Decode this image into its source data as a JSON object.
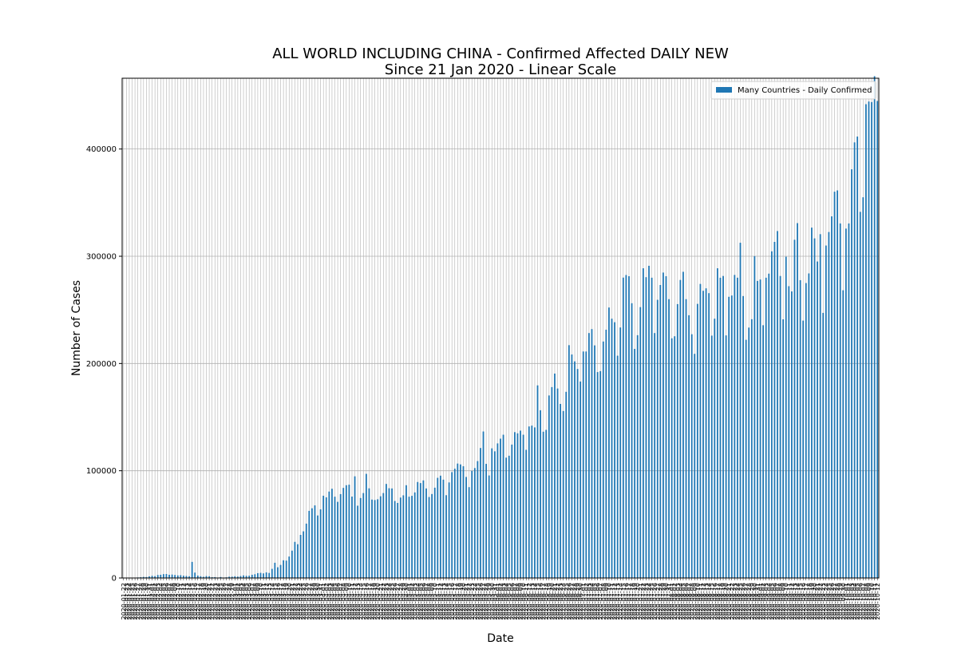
{
  "chart_data": {
    "type": "bar",
    "title": "ALL WORLD INCLUDING CHINA - Confirmed Affected DAILY NEW",
    "subtitle": "Since 21 Jan 2020 - Linear Scale",
    "xlabel": "Date",
    "ylabel": "Number of Cases",
    "ylim": [
      0,
      466000
    ],
    "yticks": [
      0,
      100000,
      200000,
      300000,
      400000
    ],
    "ytick_labels": [
      "0",
      "100000",
      "200000",
      "300000",
      "400000"
    ],
    "grid": true,
    "legend_position": "top-right",
    "colors": {
      "bar": "#1f77b4",
      "grid": "#b0b0b0"
    },
    "start_date": "2020-01-22",
    "series": [
      {
        "name": "Many Countries - Daily Confirmed",
        "values": [
          0,
          0,
          0,
          100,
          300,
          500,
          700,
          1000,
          900,
          1500,
          2000,
          1700,
          2800,
          3000,
          3600,
          3700,
          3000,
          3200,
          2800,
          2400,
          2600,
          2100,
          1900,
          1600,
          15000,
          5000,
          2200,
          1600,
          1100,
          1800,
          1600,
          700,
          800,
          400,
          900,
          300,
          600,
          1200,
          1200,
          1600,
          1300,
          1800,
          2400,
          2000,
          2100,
          3000,
          3500,
          4500,
          4800,
          4300,
          5200,
          4700,
          8500,
          14200,
          10000,
          12200,
          16500,
          16200,
          20000,
          25500,
          33700,
          31500,
          40200,
          43500,
          50700,
          62600,
          65000,
          67700,
          58300,
          64000,
          76700,
          75200,
          80600,
          83200,
          75800,
          71000,
          78200,
          84000,
          86500,
          87000,
          75900,
          94800,
          67400,
          74600,
          79200,
          97100,
          83600,
          73100,
          72700,
          73400,
          76200,
          79200,
          87700,
          83700,
          83500,
          71800,
          70000,
          75000,
          77100,
          86500,
          75800,
          76600,
          79800,
          89500,
          88500,
          91000,
          83500,
          75500,
          78300,
          84200,
          93400,
          95400,
          91700,
          77200,
          89100,
          98700,
          101900,
          106700,
          105900,
          104200,
          94200,
          84700,
          99900,
          102500,
          109000,
          121200,
          136600,
          106400,
          95600,
          120900,
          118100,
          125500,
          129900,
          133600,
          112200,
          114000,
          124400,
          136000,
          134900,
          137400,
          133600,
          119500,
          141300,
          142100,
          140400,
          179600,
          156400,
          136400,
          138100,
          170200,
          178000,
          190600,
          176700,
          162300,
          155700,
          173600,
          217100,
          208400,
          202000,
          194900,
          183200,
          211200,
          211200,
          228400,
          232100,
          216900,
          192000,
          192900,
          220500,
          231500,
          252200,
          241800,
          238500,
          207300,
          233600,
          280100,
          282500,
          281400,
          256200,
          213600,
          226400,
          252600,
          288800,
          280500,
          291100,
          280000,
          228400,
          259400,
          273200,
          284800,
          281400,
          260000,
          223500,
          225400,
          255400,
          277900,
          285500,
          260000,
          245000,
          227300,
          209000,
          255600,
          274200,
          267800,
          270100,
          265600,
          226000,
          241800,
          288800,
          280000,
          281600,
          226200,
          262200,
          263400,
          282600,
          280000,
          312600,
          262900,
          222100,
          233500,
          241300,
          300100,
          277000,
          278300,
          235700,
          280000,
          283800,
          304600,
          313400,
          323500,
          281600,
          241200,
          299600,
          272100,
          267200,
          315400,
          330900,
          277700,
          240000,
          275000,
          284000,
          326700,
          316700,
          295100,
          320600,
          247200,
          310000,
          322600,
          337200,
          360200,
          361400,
          330600,
          268300,
          325800,
          330600,
          381100,
          406200,
          411600,
          341400,
          355000,
          441800,
          444300,
          443800,
          467900,
          444800
        ]
      }
    ]
  }
}
